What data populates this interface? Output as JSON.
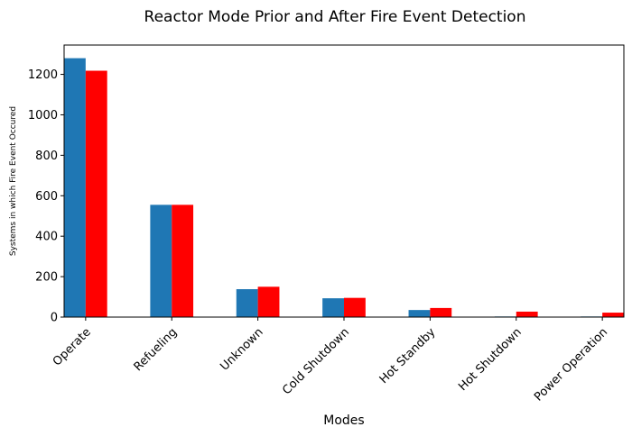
{
  "chart_data": {
    "type": "bar",
    "title": "Reactor Mode Prior and After Fire Event Detection",
    "xlabel": "Modes",
    "ylabel": "Systems in which Fire Event Occured",
    "categories": [
      "Operate",
      "Refueling",
      "Unknown",
      "Cold Shutdown",
      "Hot Standby",
      "Hot Shutdown",
      "Power Operation"
    ],
    "series": [
      {
        "values": [
          1280,
          555,
          138,
          93,
          35,
          3,
          3
        ],
        "color": "#1f77b4"
      },
      {
        "values": [
          1218,
          555,
          150,
          95,
          45,
          27,
          22
        ],
        "color": "#ff0000"
      }
    ],
    "ylim": [
      0,
      1345
    ],
    "yticks": [
      0,
      200,
      400,
      600,
      800,
      1000,
      1200
    ],
    "grid": false,
    "legend": "none"
  }
}
